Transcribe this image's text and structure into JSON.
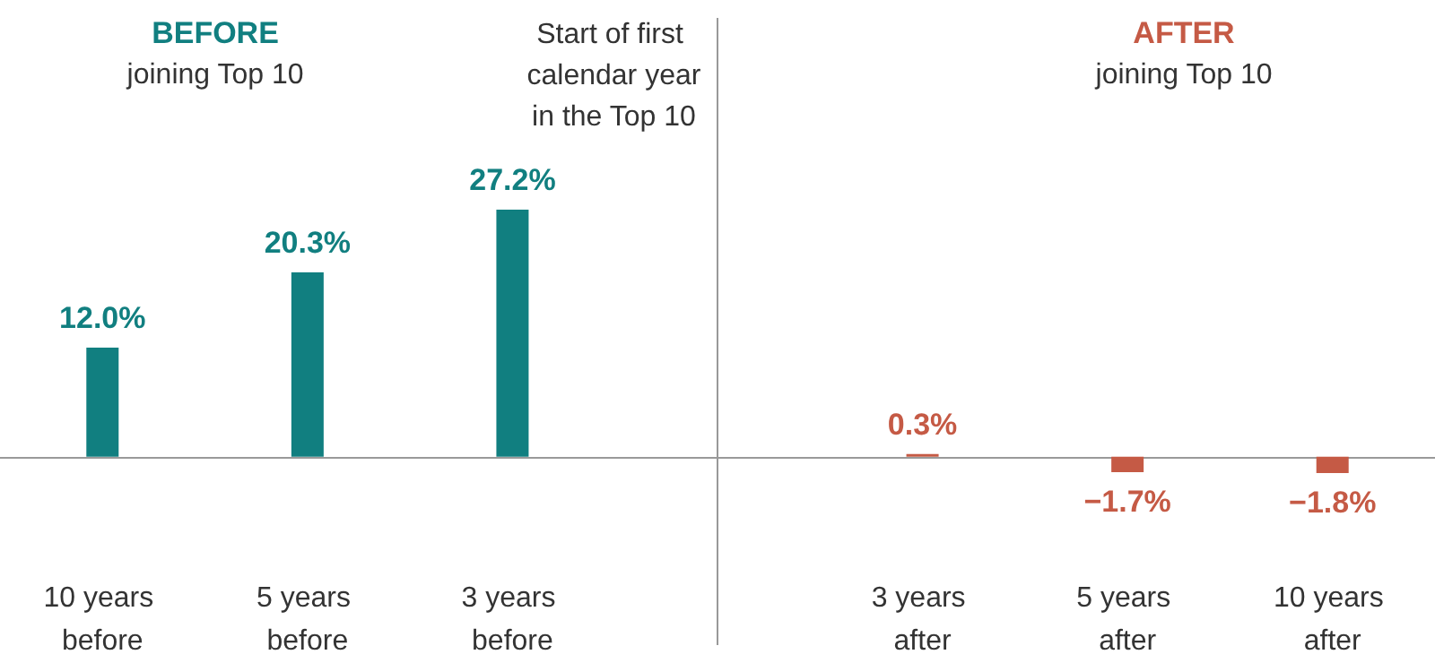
{
  "chart_data": {
    "type": "bar",
    "categories": [
      "10 years before",
      "5 years before",
      "3 years before",
      null,
      "3 years after",
      "5 years after",
      "10 years after"
    ],
    "values": [
      12.0,
      20.3,
      27.2,
      null,
      0.3,
      -1.7,
      -1.8
    ],
    "colors": [
      "#117f80",
      "#117f80",
      "#117f80",
      null,
      "#c55a45",
      "#c55a45",
      "#c55a45"
    ],
    "value_labels": [
      "12.0%",
      "20.3%",
      "27.2%",
      null,
      "0.3%",
      "−1.7%",
      "−1.8%"
    ],
    "ref_lines": [
      {
        "axis": "x",
        "value": null,
        "label": "Start of first calendar year in the Top 10",
        "color": "#999999"
      }
    ],
    "annotations": [
      "BEFORE",
      "joining Top 10",
      "AFTER",
      "joining Top 10"
    ]
  }
}
